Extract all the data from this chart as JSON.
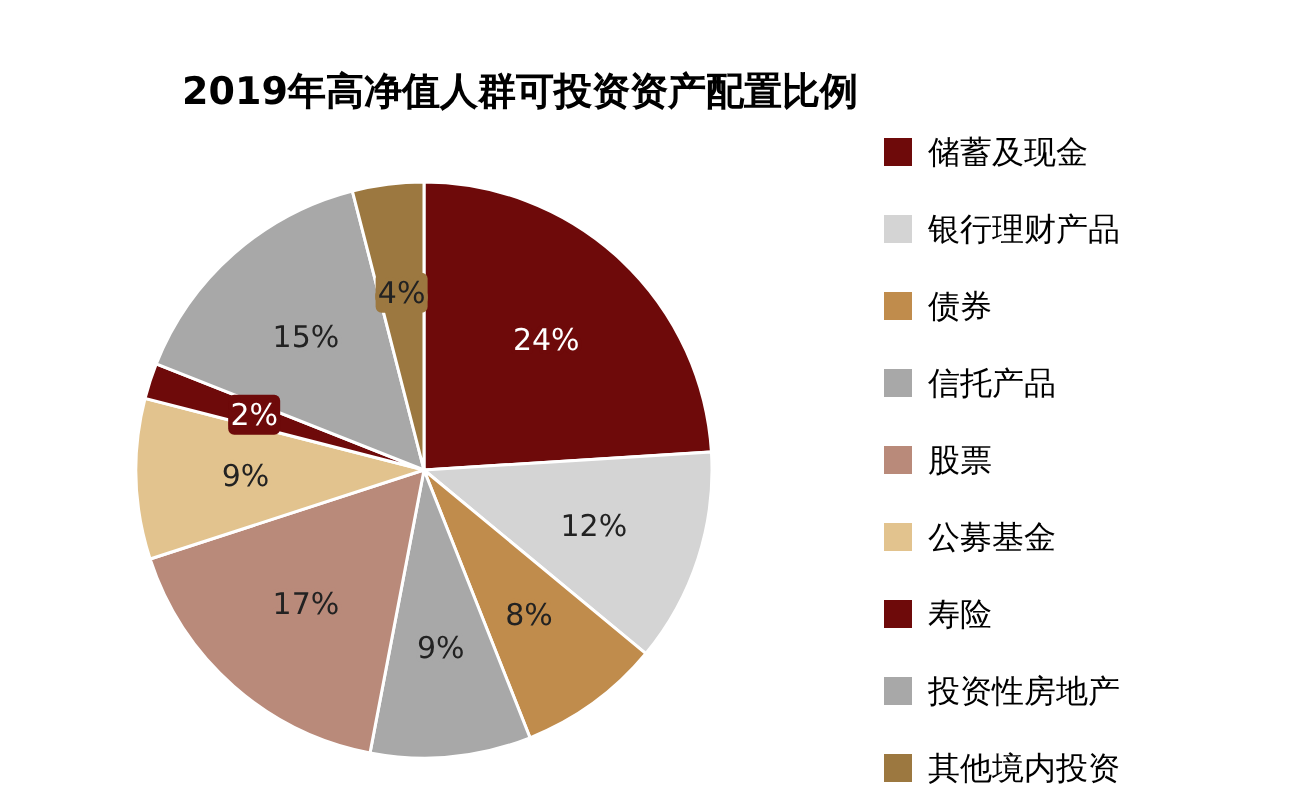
{
  "chart_data": {
    "type": "pie",
    "title": "2019年高净值人群可投资资产配置比例",
    "categories": [
      "储蓄及现金",
      "银行理财产品",
      "债券",
      "信托产品",
      "股票",
      "公募基金",
      "寿险",
      "投资性房地产",
      "其他境内投资"
    ],
    "values": [
      24,
      12,
      8,
      9,
      17,
      9,
      2,
      15,
      4
    ],
    "colors": [
      "#6e0a0a",
      "#d4d4d4",
      "#c08c4c",
      "#a8a8a8",
      "#b98a7a",
      "#e2c38e",
      "#6e0a0a",
      "#a8a8a8",
      "#9c7840"
    ],
    "value_labels": [
      "24%",
      "12%",
      "8%",
      "9%",
      "17%",
      "9%",
      "2%",
      "15%",
      "4%"
    ],
    "legend": "right"
  }
}
